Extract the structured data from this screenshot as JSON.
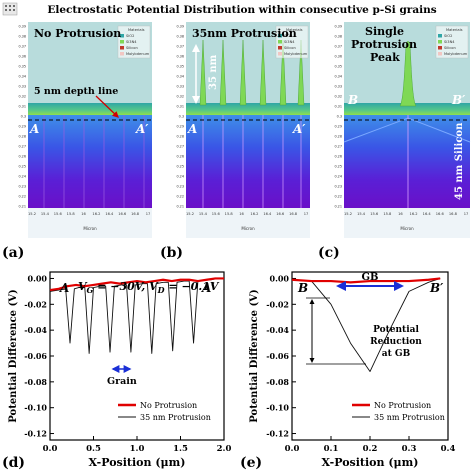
{
  "figure": {
    "title": "Electrostatic Potential Distribution within consecutive p-Si grains"
  },
  "panel_a": {
    "tag": "(a)",
    "heading": "No Protrusion",
    "annotation": "5 nm depth line",
    "left_marker": "A",
    "right_marker": "A′",
    "axis_unit": "Micron",
    "y_ticks": [
      "0.39",
      "0.38",
      "0.37",
      "0.36",
      "0.35",
      "0.34",
      "0.33",
      "0.32",
      "0.31",
      "0.3",
      "0.29",
      "0.28",
      "0.27",
      "0.26",
      "0.25",
      "0.24",
      "0.23",
      "0.22",
      "0.21"
    ],
    "x_ticks": [
      "15.2",
      "15.4",
      "15.6",
      "15.8",
      "16",
      "16.2",
      "16.4",
      "16.6",
      "16.8",
      "17"
    ],
    "legend": [
      "Materials",
      "SiO2",
      "Si3N4",
      "Silicon",
      "Molybdenum"
    ]
  },
  "panel_b": {
    "tag": "(b)",
    "heading": "35nm Protrusion",
    "vertical_label": "35 nm",
    "left_marker": "A",
    "right_marker": "A′",
    "axis_unit": "Micron",
    "y_ticks": [
      "0.39",
      "0.38",
      "0.37",
      "0.36",
      "0.35",
      "0.34",
      "0.33",
      "0.32",
      "0.31",
      "0.3",
      "0.29",
      "0.28",
      "0.27",
      "0.26",
      "0.25",
      "0.24",
      "0.23",
      "0.22",
      "0.21"
    ],
    "x_ticks": [
      "15.2",
      "15.4",
      "15.6",
      "15.8",
      "16",
      "16.2",
      "16.4",
      "16.6",
      "16.8",
      "17"
    ],
    "legend": [
      "Materials",
      "SiO2",
      "Si3N4",
      "Silicon",
      "Molybdenum"
    ]
  },
  "panel_c": {
    "tag": "(c)",
    "heading_line1": "Single",
    "heading_line2": "Protrusion",
    "heading_line3": "Peak",
    "vertical_label": "45 nm Silicon",
    "left_marker": "B",
    "right_marker": "B′",
    "axis_unit": "Micron",
    "y_ticks": [
      "0.39",
      "0.38",
      "0.37",
      "0.36",
      "0.35",
      "0.34",
      "0.33",
      "0.32",
      "0.31",
      "0.3",
      "0.29",
      "0.28",
      "0.27",
      "0.26",
      "0.25",
      "0.24",
      "0.23",
      "0.22",
      "0.21"
    ],
    "x_ticks": [
      "15.2",
      "15.4",
      "15.6",
      "15.8",
      "16",
      "16.2",
      "16.4",
      "16.6",
      "16.8",
      "17"
    ],
    "legend": [
      "Materials",
      "SiO2",
      "Si3N4",
      "Silicon",
      "Molybdenum"
    ]
  },
  "colors": {
    "sio2": "#2fa6a6",
    "si3n4": "#7fd855",
    "silicon_top": "#5aa0e8",
    "silicon_bottom": "#6a10c8",
    "no_protrusion": "#e00000",
    "protrusion": "#111111",
    "arrow": "#1a2fd6"
  },
  "chart_data": [
    {
      "type": "line",
      "panel": "(d)",
      "equation": "V G = −30V, V D = −0.1V",
      "equation_parts": [
        "V",
        "G",
        " = −30",
        "V",
        ", ",
        "V",
        "D",
        " = −0.1",
        "V"
      ],
      "xlabel": "X-Position (μm)",
      "ylabel": "Potential Difference (V)",
      "xlim": [
        0.0,
        2.0
      ],
      "ylim": [
        -0.125,
        0.005
      ],
      "x_ticks": [
        "0.0",
        "0.5",
        "1.0",
        "1.5",
        "2.0"
      ],
      "y_ticks": [
        "0.00",
        "-0.02",
        "-0.04",
        "-0.06",
        "-0.08",
        "-0.10",
        "-0.12"
      ],
      "left_marker": "A",
      "right_marker": "A′",
      "annotation": "Grain",
      "legend_position": "bottom-right",
      "series": [
        {
          "name": "No Protrusion",
          "x": [
            0.0,
            0.1,
            0.2,
            0.3,
            0.4,
            0.5,
            0.6,
            0.7,
            0.8,
            0.9,
            1.0,
            1.1,
            1.2,
            1.3,
            1.4,
            1.5,
            1.6,
            1.7,
            1.8,
            1.9,
            2.0
          ],
          "y": [
            -0.009,
            -0.008,
            -0.006,
            -0.005,
            -0.006,
            -0.005,
            -0.004,
            -0.003,
            -0.004,
            -0.003,
            -0.002,
            -0.003,
            -0.002,
            -0.001,
            -0.002,
            -0.001,
            -0.001,
            -0.002,
            -0.001,
            0.0,
            0.0
          ]
        },
        {
          "name": "35 nm Protrusion",
          "x": [
            0.0,
            0.1,
            0.18,
            0.23,
            0.28,
            0.33,
            0.4,
            0.45,
            0.5,
            0.58,
            0.64,
            0.69,
            0.74,
            0.82,
            0.88,
            0.93,
            0.98,
            1.06,
            1.12,
            1.17,
            1.22,
            1.3,
            1.36,
            1.41,
            1.46,
            1.54,
            1.6,
            1.65,
            1.7,
            1.78,
            1.85,
            1.92,
            2.0
          ],
          "y": [
            -0.01,
            -0.009,
            -0.008,
            -0.05,
            -0.008,
            -0.007,
            -0.007,
            -0.058,
            -0.007,
            -0.006,
            -0.006,
            -0.057,
            -0.006,
            -0.005,
            -0.005,
            -0.057,
            -0.005,
            -0.004,
            -0.004,
            -0.058,
            -0.004,
            -0.003,
            -0.003,
            -0.056,
            -0.003,
            -0.002,
            -0.002,
            -0.05,
            -0.002,
            -0.001,
            -0.001,
            0.0,
            0.0
          ]
        }
      ]
    },
    {
      "type": "line",
      "panel": "(e)",
      "xlabel": "X-Position (μm)",
      "ylabel": "Potential Difference (V)",
      "xlim": [
        0.0,
        0.4
      ],
      "ylim": [
        -0.125,
        0.005
      ],
      "x_ticks": [
        "0.0",
        "0.1",
        "0.2",
        "0.3",
        "0.4"
      ],
      "y_ticks": [
        "0.00",
        "-0.02",
        "-0.04",
        "-0.06",
        "-0.08",
        "-0.10",
        "-0.12"
      ],
      "left_marker": "B",
      "right_marker": "B′",
      "top_annotation": "GB",
      "annotation": "Potential Reduction at GB",
      "legend_position": "bottom-right",
      "series": [
        {
          "name": "No Protrusion",
          "x": [
            0.0,
            0.05,
            0.1,
            0.15,
            0.2,
            0.25,
            0.3,
            0.35,
            0.38
          ],
          "y": [
            -0.001,
            -0.002,
            -0.002,
            -0.003,
            -0.002,
            -0.002,
            -0.002,
            -0.001,
            0.0
          ]
        },
        {
          "name": "35 nm Protrusion",
          "x": [
            0.0,
            0.05,
            0.1,
            0.15,
            0.2,
            0.25,
            0.3,
            0.35,
            0.38
          ],
          "y": [
            -0.001,
            -0.002,
            -0.02,
            -0.05,
            -0.072,
            -0.04,
            -0.01,
            -0.003,
            0.0
          ]
        }
      ]
    }
  ]
}
